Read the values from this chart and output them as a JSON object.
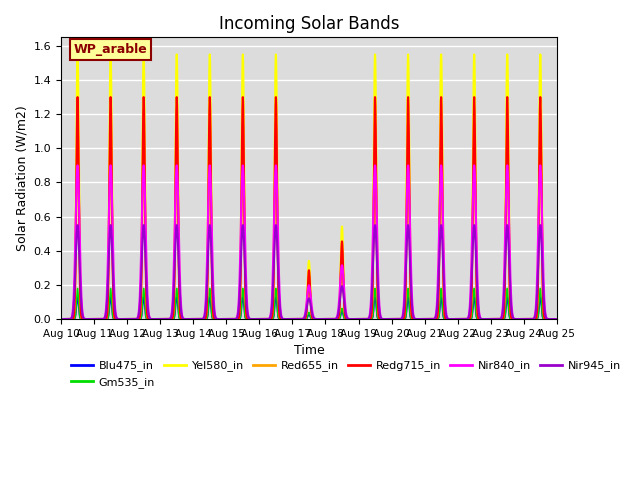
{
  "title": "Incoming Solar Bands",
  "xlabel": "Time",
  "ylabel": "Solar Radiation (W/m2)",
  "ylim": [
    0,
    1.65
  ],
  "x_tick_labels": [
    "Aug 10",
    "Aug 11",
    "Aug 12",
    "Aug 13",
    "Aug 14",
    "Aug 15",
    "Aug 16",
    "Aug 17",
    "Aug 18",
    "Aug 19",
    "Aug 20",
    "Aug 21",
    "Aug 22",
    "Aug 23",
    "Aug 24",
    "Aug 25"
  ],
  "bg_color": "#dcdcdc",
  "fig_color": "#ffffff",
  "annotation_text": "WP_arable",
  "annotation_color": "#8B0000",
  "annotation_bg": "#ffff99",
  "series": [
    {
      "name": "Blu475_in",
      "color": "#0000ff",
      "lw": 1.0,
      "peak": 0.13,
      "sigma": 0.03
    },
    {
      "name": "Gm535_in",
      "color": "#00dd00",
      "lw": 1.0,
      "peak": 0.18,
      "sigma": 0.03
    },
    {
      "name": "Yel580_in",
      "color": "#ffff00",
      "lw": 1.5,
      "peak": 1.55,
      "sigma": 0.04
    },
    {
      "name": "Red655_in",
      "color": "#ffa500",
      "lw": 1.5,
      "peak": 1.15,
      "sigma": 0.038
    },
    {
      "name": "Redg715_in",
      "color": "#ff0000",
      "lw": 1.5,
      "peak": 1.3,
      "sigma": 0.038
    },
    {
      "name": "Nir840_in",
      "color": "#ff00ff",
      "lw": 1.5,
      "peak": 0.9,
      "sigma": 0.06
    },
    {
      "name": "Nir945_in",
      "color": "#9900cc",
      "lw": 1.5,
      "peak": 0.55,
      "sigma": 0.06
    }
  ],
  "day_peaks": [
    1.0,
    1.0,
    1.0,
    1.0,
    1.0,
    1.0,
    1.0,
    0.22,
    0.35,
    1.0,
    1.0,
    1.0,
    1.0,
    1.0,
    1.0
  ],
  "points_per_day": 500,
  "num_days": 15,
  "grid_color": "#ffffff",
  "grid_lw": 1.0,
  "legend_labels": [
    "Blu475_in",
    "Gm535_in",
    "Yel580_in",
    "Red655_in",
    "Redg715_in",
    "Nir840_in",
    "Nir945_in"
  ]
}
